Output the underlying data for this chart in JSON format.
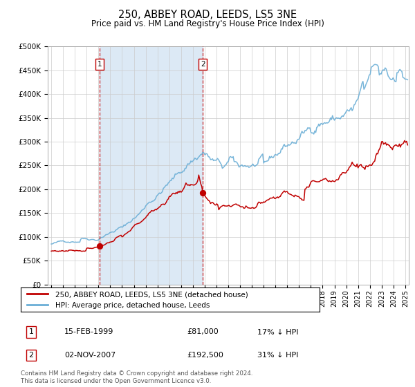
{
  "title": "250, ABBEY ROAD, LEEDS, LS5 3NE",
  "subtitle": "Price paid vs. HM Land Registry's House Price Index (HPI)",
  "legend_line1": "250, ABBEY ROAD, LEEDS, LS5 3NE (detached house)",
  "legend_line2": "HPI: Average price, detached house, Leeds",
  "purchase1_date": "15-FEB-1999",
  "purchase1_price": "£81,000",
  "purchase1_hpi": "17% ↓ HPI",
  "purchase2_date": "02-NOV-2007",
  "purchase2_price": "£192,500",
  "purchase2_hpi": "31% ↓ HPI",
  "footnote": "Contains HM Land Registry data © Crown copyright and database right 2024.\nThis data is licensed under the Open Government Licence v3.0.",
  "hpi_color": "#6aaed6",
  "price_color": "#c00000",
  "bg_color": "#dce9f5",
  "purchase1_x": 1999.12,
  "purchase2_x": 2007.84,
  "purchase1_y": 81000,
  "purchase2_y": 192500,
  "ylim": [
    0,
    500000
  ],
  "xlim_start": 1994.7,
  "xlim_end": 2025.3
}
